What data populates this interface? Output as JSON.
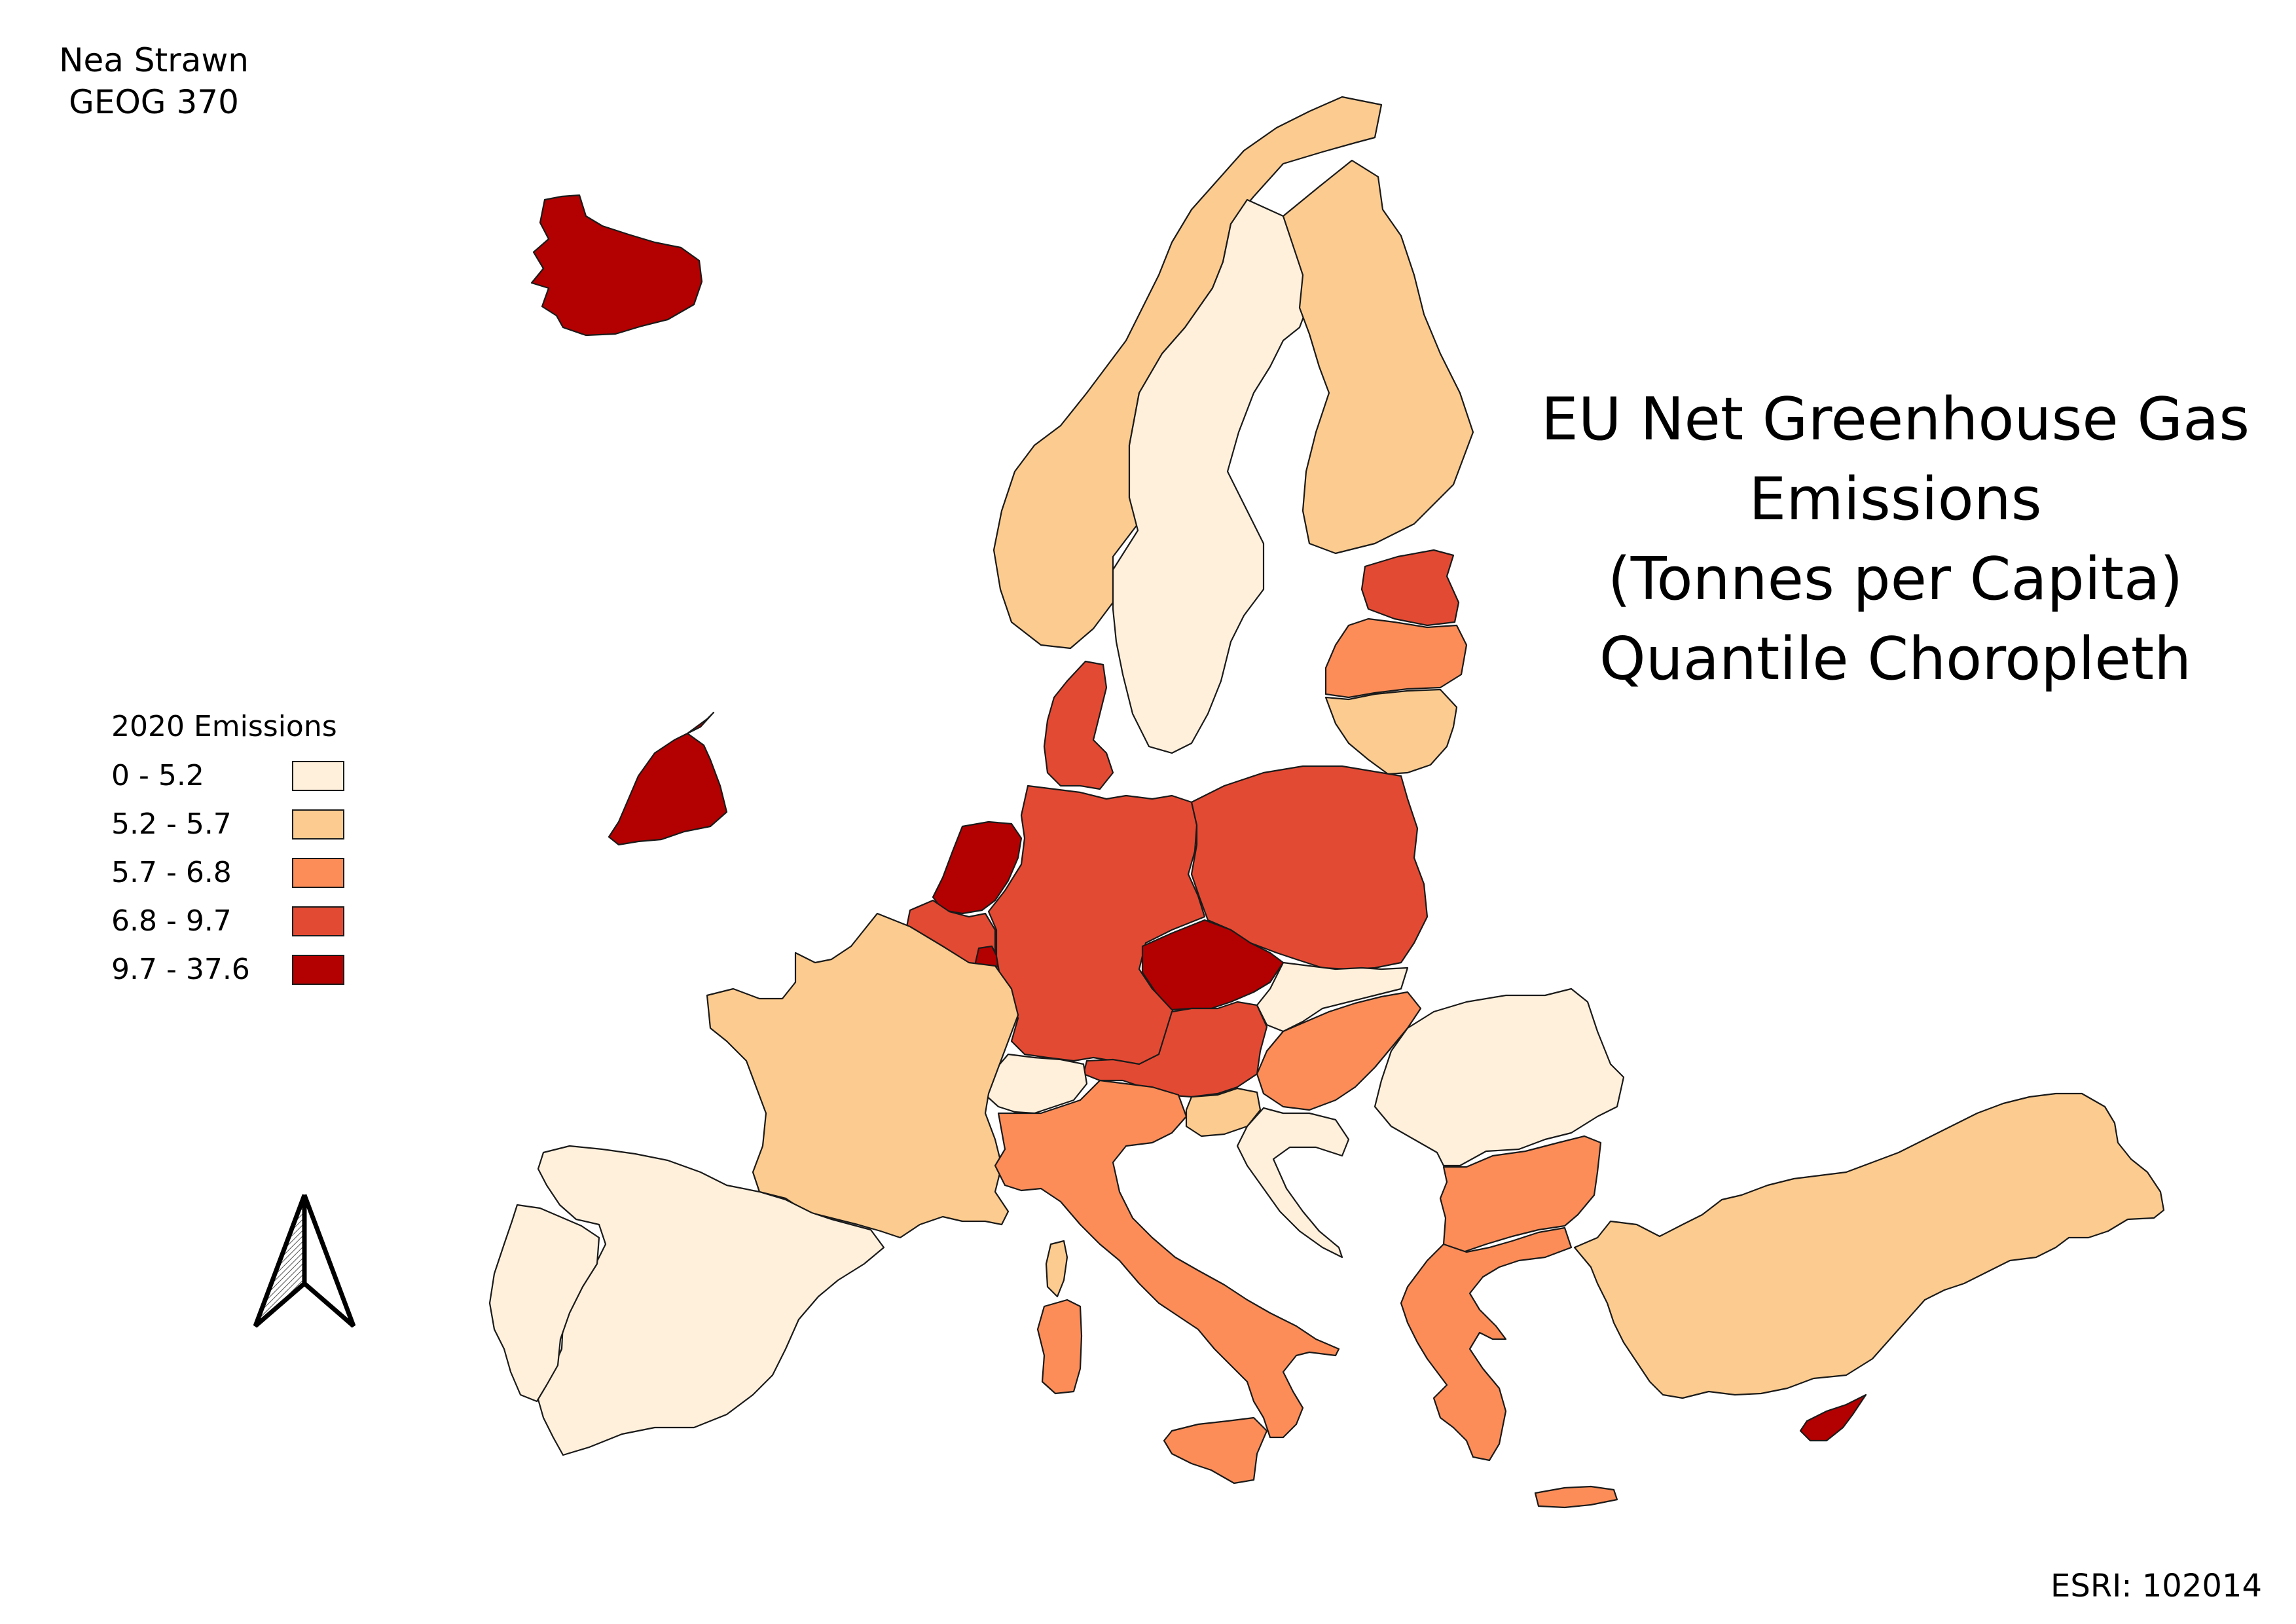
{
  "author": {
    "name": "Nea Strawn",
    "course": "GEOG 370"
  },
  "title": {
    "line1": "EU Net Greenhouse Gas",
    "line2": "Emissions",
    "line3": "(Tonnes per Capita)",
    "line4": "Quantile Choropleth"
  },
  "legend": {
    "title": "2020 Emissions",
    "classes": [
      {
        "label": "0 - 5.2",
        "color": "#fff0dc"
      },
      {
        "label": "5.2 - 5.7",
        "color": "#fccb8f"
      },
      {
        "label": "5.7 - 6.8",
        "color": "#fc8d59"
      },
      {
        "label": "6.8 - 9.7",
        "color": "#e34a33"
      },
      {
        "label": "9.7 - 37.6",
        "color": "#b30000"
      }
    ]
  },
  "source": "ESRI: 102014",
  "north_arrow": "north-arrow-icon",
  "countries": [
    {
      "name": "Iceland",
      "class": 4
    },
    {
      "name": "Norway",
      "class": 1
    },
    {
      "name": "Sweden",
      "class": 0
    },
    {
      "name": "Finland",
      "class": 1
    },
    {
      "name": "Estonia",
      "class": 3
    },
    {
      "name": "Latvia",
      "class": 2
    },
    {
      "name": "Lithuania",
      "class": 1
    },
    {
      "name": "Ireland",
      "class": 4
    },
    {
      "name": "Denmark",
      "class": 3
    },
    {
      "name": "Netherlands",
      "class": 4
    },
    {
      "name": "Belgium",
      "class": 3
    },
    {
      "name": "Luxembourg",
      "class": 4
    },
    {
      "name": "Germany",
      "class": 3
    },
    {
      "name": "Poland",
      "class": 3
    },
    {
      "name": "Czechia",
      "class": 4
    },
    {
      "name": "Slovakia",
      "class": 0
    },
    {
      "name": "Austria",
      "class": 3
    },
    {
      "name": "Switzerland",
      "class": 0
    },
    {
      "name": "Hungary",
      "class": 2
    },
    {
      "name": "Slovenia",
      "class": 1
    },
    {
      "name": "Croatia",
      "class": 0
    },
    {
      "name": "Romania",
      "class": 0
    },
    {
      "name": "Bulgaria",
      "class": 2
    },
    {
      "name": "France",
      "class": 1
    },
    {
      "name": "Spain",
      "class": 0
    },
    {
      "name": "Portugal",
      "class": 0
    },
    {
      "name": "Italy",
      "class": 2
    },
    {
      "name": "Greece",
      "class": 2
    },
    {
      "name": "Turkey",
      "class": 1
    },
    {
      "name": "Cyprus",
      "class": 4
    }
  ]
}
